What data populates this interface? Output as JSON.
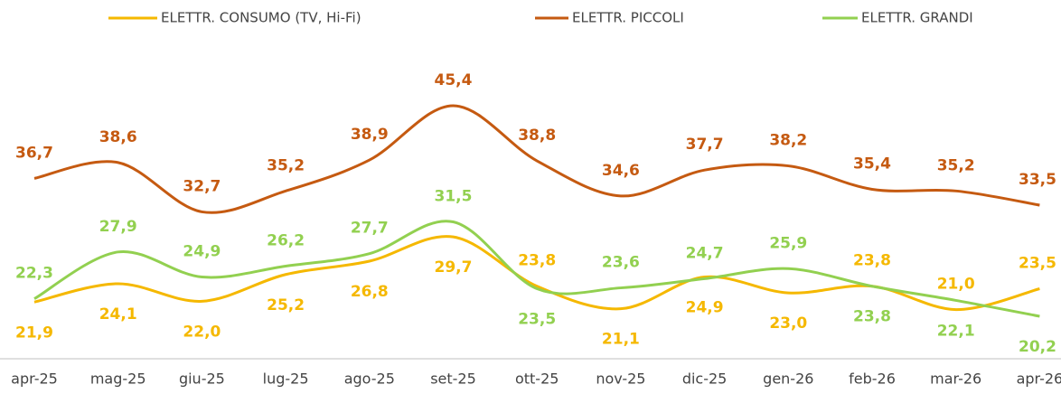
{
  "chart_data": {
    "type": "line",
    "categories": [
      "apr-25",
      "mag-25",
      "giu-25",
      "lug-25",
      "ago-25",
      "set-25",
      "ott-25",
      "nov-25",
      "dic-25",
      "gen-26",
      "feb-26",
      "mar-26",
      "apr-26"
    ],
    "series": [
      {
        "name": "ELETTR. CONSUMO (TV, Hi-Fi)",
        "color": "#f5b800",
        "values": [
          21.9,
          24.1,
          22.0,
          25.2,
          26.8,
          29.7,
          23.8,
          21.1,
          24.9,
          23.0,
          23.8,
          21.0,
          23.5
        ],
        "value_labels": [
          "21,9",
          "24,1",
          "22,0",
          "25,2",
          "26,8",
          "29,7",
          "23,8",
          "21,1",
          "24,9",
          "23,0",
          "23,8",
          "21,0",
          "23,5"
        ]
      },
      {
        "name": "ELETTR. PICCOLI",
        "color": "#c55a11",
        "values": [
          36.7,
          38.6,
          32.7,
          35.2,
          38.9,
          45.4,
          38.8,
          34.6,
          37.7,
          38.2,
          35.4,
          35.2,
          33.5
        ],
        "value_labels": [
          "36,7",
          "38,6",
          "32,7",
          "35,2",
          "38,9",
          "45,4",
          "38,8",
          "34,6",
          "37,7",
          "38,2",
          "35,4",
          "35,2",
          "33,5"
        ]
      },
      {
        "name": "ELETTR. GRANDI",
        "color": "#92d050",
        "values": [
          22.3,
          27.9,
          24.9,
          26.2,
          27.7,
          31.5,
          23.5,
          23.6,
          24.7,
          25.9,
          23.8,
          22.1,
          20.2
        ],
        "value_labels": [
          "22,3",
          "27,9",
          "24,9",
          "26,2",
          "27,7",
          "31,5",
          "23,5",
          "23,6",
          "24,7",
          "25,9",
          "23,8",
          "22,1",
          "20,2"
        ]
      }
    ]
  }
}
